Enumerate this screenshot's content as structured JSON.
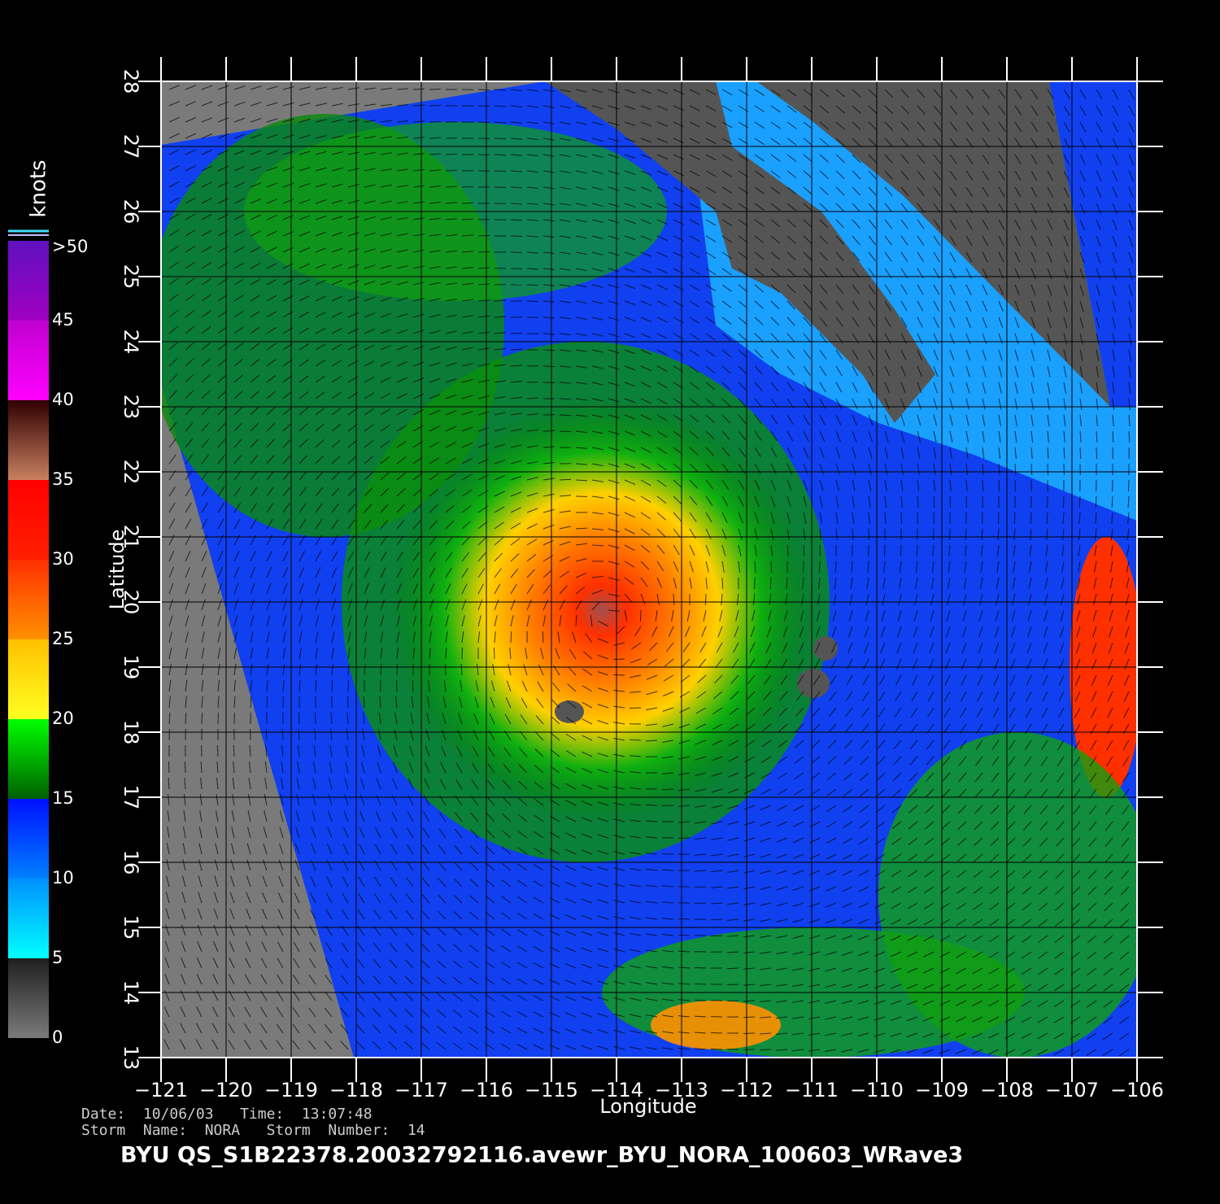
{
  "chart_data": {
    "type": "map",
    "title": "BYU  QS_S1B22378.20032792116.avewr_BYU_NORA_100603_WRave3",
    "info_lines": [
      "Date:  10/06/03   Time:  13:07:48",
      "Storm  Name:  NORA   Storm  Number:  14"
    ],
    "xlabel": "Longitude",
    "ylabel": "Latitude",
    "xlim": [
      -121,
      -106
    ],
    "ylim": [
      13,
      28
    ],
    "xticks": [
      {
        "value": -121,
        "label": "−121"
      },
      {
        "value": -120,
        "label": "−120"
      },
      {
        "value": -119,
        "label": "−119"
      },
      {
        "value": -118,
        "label": "−118"
      },
      {
        "value": -117,
        "label": "−117"
      },
      {
        "value": -116,
        "label": "−116"
      },
      {
        "value": -115,
        "label": "−115"
      },
      {
        "value": -114,
        "label": "−114"
      },
      {
        "value": -113,
        "label": "−113"
      },
      {
        "value": -112,
        "label": "−112"
      },
      {
        "value": -111,
        "label": "−111"
      },
      {
        "value": -110,
        "label": "−110"
      },
      {
        "value": -109,
        "label": "−109"
      },
      {
        "value": -108,
        "label": "−108"
      },
      {
        "value": -107,
        "label": "−107"
      },
      {
        "value": -106,
        "label": "−106"
      }
    ],
    "yticks": [
      13,
      14,
      15,
      16,
      17,
      18,
      19,
      20,
      21,
      22,
      23,
      24,
      25,
      26,
      27,
      28
    ],
    "grid": true,
    "colorbar": {
      "label": "knots",
      "lim": [
        0,
        50
      ],
      "ticks": [
        0,
        5,
        10,
        15,
        20,
        25,
        30,
        35,
        40,
        45,
        {
          "value": 50,
          "label": ">50"
        }
      ],
      "colors": [
        [
          "#7a7a7a",
          "#202020"
        ],
        [
          "#00ffff",
          "#0090ff"
        ],
        [
          "#0080ff",
          "#0010ff"
        ],
        [
          "#006000",
          "#00ff00"
        ],
        [
          "#ffff20",
          "#ffc000"
        ],
        [
          "#ff9000",
          "#ff3000"
        ],
        [
          "#ff2000",
          "#ff0000"
        ],
        [
          "#c88060",
          "#300000"
        ],
        [
          "#ff00ff",
          "#c000d0"
        ],
        [
          "#a000c0",
          "#6010c0"
        ]
      ]
    }
  }
}
